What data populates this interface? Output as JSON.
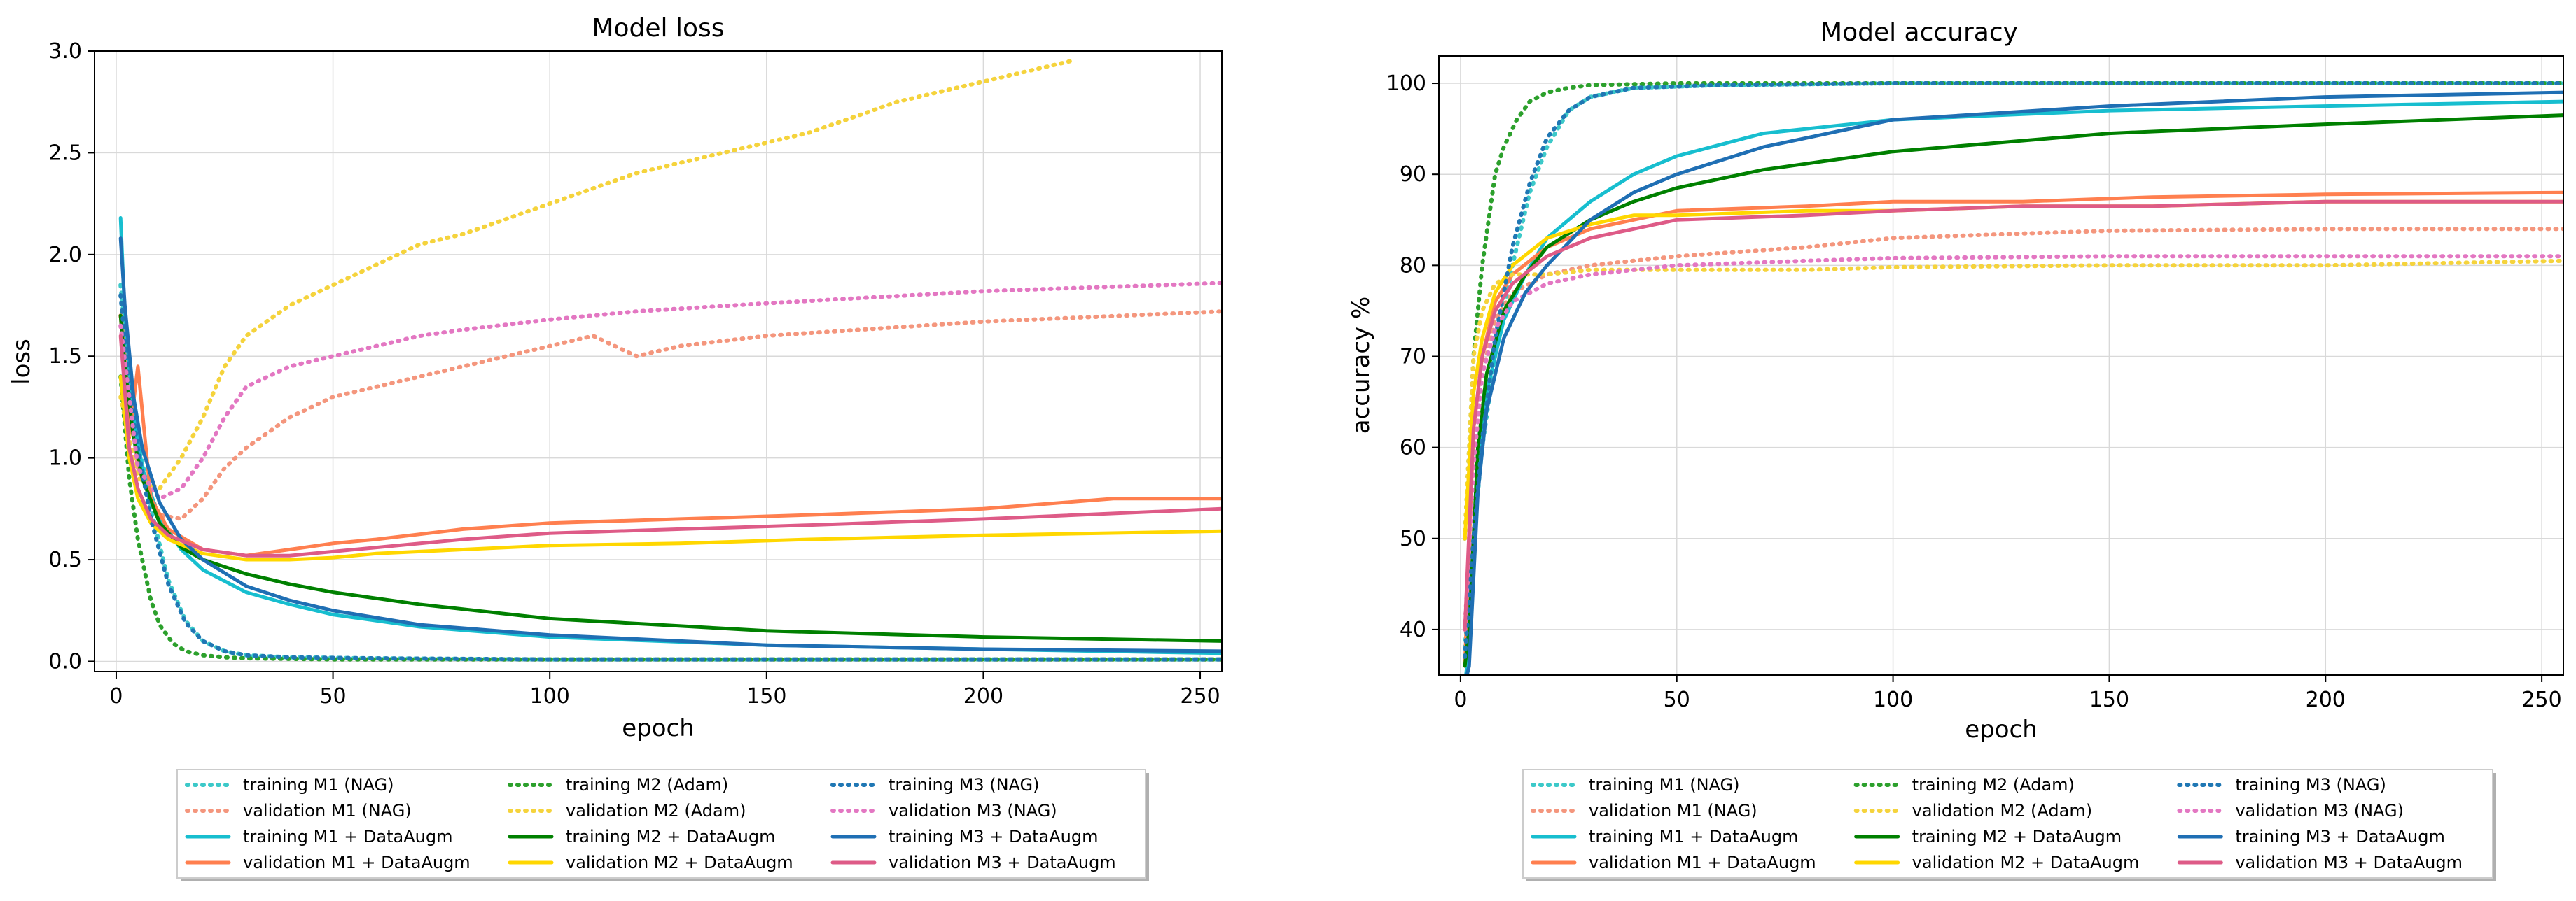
{
  "chart_data": [
    {
      "type": "line",
      "title": "Model loss",
      "xlabel": "epoch",
      "ylabel": "loss",
      "xlim": [
        -5,
        255
      ],
      "ylim": [
        -0.05,
        3.0
      ],
      "xticks": [
        0,
        50,
        100,
        150,
        200,
        250
      ],
      "yticks": [
        0.0,
        0.5,
        1.0,
        1.5,
        2.0,
        2.5,
        3.0
      ],
      "ytick_labels": [
        "0.0",
        "0.5",
        "1.0",
        "1.5",
        "2.0",
        "2.5",
        "3.0"
      ],
      "grid": true,
      "legend_position": "below",
      "series": [
        {
          "name": "training M1 (NAG)",
          "color": "#3cc9c9",
          "style": "dotted",
          "x": [
            1,
            3,
            5,
            8,
            12,
            16,
            20,
            25,
            30,
            40,
            60,
            100,
            150,
            200,
            255
          ],
          "y": [
            1.85,
            1.4,
            1.1,
            0.75,
            0.4,
            0.2,
            0.1,
            0.05,
            0.03,
            0.02,
            0.015,
            0.01,
            0.01,
            0.01,
            0.01
          ]
        },
        {
          "name": "validation M1 (NAG)",
          "color": "#f4967d",
          "style": "dotted",
          "x": [
            1,
            5,
            10,
            15,
            20,
            25,
            30,
            40,
            50,
            60,
            70,
            80,
            100,
            110,
            120,
            130,
            150,
            200,
            255
          ],
          "y": [
            1.7,
            0.95,
            0.72,
            0.7,
            0.8,
            0.95,
            1.05,
            1.2,
            1.3,
            1.35,
            1.4,
            1.45,
            1.55,
            1.6,
            1.5,
            1.55,
            1.6,
            1.67,
            1.72
          ]
        },
        {
          "name": "training M1 + DataAugm",
          "color": "#17becf",
          "style": "solid",
          "x": [
            1,
            2,
            4,
            6,
            10,
            15,
            20,
            30,
            40,
            50,
            70,
            100,
            150,
            200,
            255
          ],
          "y": [
            2.18,
            1.7,
            1.2,
            0.95,
            0.7,
            0.55,
            0.45,
            0.34,
            0.28,
            0.23,
            0.17,
            0.12,
            0.08,
            0.06,
            0.04
          ]
        },
        {
          "name": "validation M1 + DataAugm",
          "color": "#ff7f4f",
          "style": "solid",
          "x": [
            1,
            3,
            5,
            8,
            12,
            20,
            30,
            40,
            50,
            60,
            80,
            100,
            130,
            160,
            200,
            230,
            255
          ],
          "y": [
            1.7,
            1.1,
            1.45,
            0.8,
            0.65,
            0.55,
            0.52,
            0.55,
            0.58,
            0.6,
            0.65,
            0.68,
            0.7,
            0.72,
            0.75,
            0.8,
            0.8
          ]
        },
        {
          "name": "training M2 (Adam)",
          "color": "#2ca02c",
          "style": "dotted",
          "x": [
            1,
            3,
            5,
            8,
            10,
            13,
            16,
            20,
            25,
            30,
            50,
            100,
            150,
            200,
            255
          ],
          "y": [
            1.4,
            0.9,
            0.6,
            0.3,
            0.18,
            0.09,
            0.05,
            0.03,
            0.02,
            0.015,
            0.01,
            0.01,
            0.01,
            0.01,
            0.01
          ]
        },
        {
          "name": "validation M2 (Adam)",
          "color": "#f5d33c",
          "style": "dotted",
          "x": [
            1,
            5,
            10,
            15,
            20,
            25,
            30,
            40,
            50,
            60,
            70,
            80,
            100,
            120,
            140,
            160,
            180,
            200,
            220
          ],
          "y": [
            1.3,
            0.9,
            0.85,
            1.0,
            1.2,
            1.45,
            1.6,
            1.75,
            1.85,
            1.95,
            2.05,
            2.1,
            2.25,
            2.4,
            2.5,
            2.6,
            2.75,
            2.85,
            2.95
          ]
        },
        {
          "name": "training M2 + DataAugm",
          "color": "#008000",
          "style": "solid",
          "x": [
            1,
            2,
            4,
            6,
            10,
            15,
            20,
            30,
            40,
            50,
            70,
            100,
            150,
            200,
            255
          ],
          "y": [
            1.7,
            1.45,
            1.1,
            0.9,
            0.68,
            0.56,
            0.5,
            0.43,
            0.38,
            0.34,
            0.28,
            0.21,
            0.15,
            0.12,
            0.1
          ]
        },
        {
          "name": "validation M2 + DataAugm",
          "color": "#ffd700",
          "style": "solid",
          "x": [
            1,
            3,
            5,
            8,
            12,
            20,
            30,
            40,
            50,
            60,
            80,
            100,
            130,
            160,
            200,
            255
          ],
          "y": [
            1.4,
            1.0,
            0.8,
            0.68,
            0.6,
            0.53,
            0.5,
            0.5,
            0.51,
            0.53,
            0.55,
            0.57,
            0.58,
            0.6,
            0.62,
            0.64
          ]
        },
        {
          "name": "training M3 (NAG)",
          "color": "#1f77b4",
          "style": "dotted",
          "x": [
            1,
            3,
            5,
            8,
            12,
            16,
            20,
            25,
            30,
            40,
            60,
            100,
            150,
            200,
            255
          ],
          "y": [
            1.8,
            1.35,
            1.05,
            0.7,
            0.38,
            0.19,
            0.1,
            0.05,
            0.03,
            0.02,
            0.015,
            0.01,
            0.01,
            0.01,
            0.01
          ]
        },
        {
          "name": "validation M3 (NAG)",
          "color": "#e377c2",
          "style": "dotted",
          "x": [
            1,
            5,
            10,
            15,
            20,
            25,
            30,
            40,
            50,
            60,
            70,
            80,
            100,
            120,
            150,
            200,
            255
          ],
          "y": [
            1.65,
            0.95,
            0.8,
            0.85,
            1.0,
            1.2,
            1.35,
            1.45,
            1.5,
            1.55,
            1.6,
            1.63,
            1.68,
            1.72,
            1.76,
            1.82,
            1.86
          ]
        },
        {
          "name": "training M3 + DataAugm",
          "color": "#1f6fb4",
          "style": "solid",
          "x": [
            1,
            2,
            4,
            6,
            10,
            15,
            20,
            30,
            40,
            50,
            70,
            100,
            150,
            200,
            255
          ],
          "y": [
            2.08,
            1.75,
            1.3,
            1.05,
            0.78,
            0.6,
            0.5,
            0.37,
            0.3,
            0.25,
            0.18,
            0.13,
            0.08,
            0.06,
            0.05
          ]
        },
        {
          "name": "validation M3 + DataAugm",
          "color": "#de5b87",
          "style": "solid",
          "x": [
            1,
            3,
            5,
            8,
            12,
            20,
            30,
            40,
            50,
            60,
            80,
            100,
            130,
            160,
            200,
            255
          ],
          "y": [
            1.6,
            1.05,
            0.85,
            0.7,
            0.62,
            0.55,
            0.52,
            0.52,
            0.54,
            0.56,
            0.6,
            0.63,
            0.65,
            0.67,
            0.7,
            0.75
          ]
        }
      ]
    },
    {
      "type": "line",
      "title": "Model accuracy",
      "xlabel": "epoch",
      "ylabel": "accuracy %",
      "xlim": [
        -5,
        255
      ],
      "ylim": [
        35,
        103
      ],
      "xticks": [
        0,
        50,
        100,
        150,
        200,
        250
      ],
      "yticks": [
        40,
        50,
        60,
        70,
        80,
        90,
        100
      ],
      "ytick_labels": [
        "40",
        "50",
        "60",
        "70",
        "80",
        "90",
        "100"
      ],
      "grid": true,
      "legend_position": "below",
      "series": [
        {
          "name": "training M1 (NAG)",
          "color": "#3cc9c9",
          "style": "dotted",
          "x": [
            1,
            3,
            5,
            8,
            12,
            16,
            20,
            25,
            30,
            40,
            60,
            100,
            150,
            200,
            255
          ],
          "y": [
            38,
            50,
            60,
            70,
            80,
            88,
            93,
            97,
            98.5,
            99.5,
            99.8,
            100,
            100,
            100,
            100
          ]
        },
        {
          "name": "validation M1 (NAG)",
          "color": "#f4967d",
          "style": "dotted",
          "x": [
            1,
            3,
            5,
            8,
            12,
            20,
            30,
            50,
            80,
            100,
            130,
            150,
            200,
            255
          ],
          "y": [
            40,
            58,
            68,
            74,
            77,
            79,
            80,
            81,
            82,
            83,
            83.5,
            83.8,
            84,
            84
          ]
        },
        {
          "name": "training M1 + DataAugm",
          "color": "#17becf",
          "style": "solid",
          "x": [
            1,
            2,
            4,
            6,
            10,
            15,
            20,
            30,
            40,
            50,
            70,
            100,
            150,
            200,
            255
          ],
          "y": [
            34,
            38,
            58,
            66,
            74,
            79,
            83,
            87,
            90,
            92,
            94.5,
            96,
            97,
            97.5,
            98
          ]
        },
        {
          "name": "validation M1 + DataAugm",
          "color": "#ff7f4f",
          "style": "solid",
          "x": [
            1,
            3,
            5,
            8,
            12,
            20,
            30,
            40,
            50,
            80,
            100,
            130,
            160,
            200,
            255
          ],
          "y": [
            36,
            62,
            70,
            76,
            79,
            82,
            84,
            85,
            86,
            86.5,
            87,
            87,
            87.5,
            87.8,
            88
          ]
        },
        {
          "name": "training M2 (Adam)",
          "color": "#2ca02c",
          "style": "dotted",
          "x": [
            1,
            3,
            5,
            8,
            10,
            13,
            16,
            20,
            25,
            30,
            50,
            100,
            150,
            200,
            255
          ],
          "y": [
            50,
            70,
            80,
            90,
            93,
            96,
            98,
            99,
            99.5,
            99.8,
            100,
            100,
            100,
            100,
            100
          ]
        },
        {
          "name": "validation M2 (Adam)",
          "color": "#f5d33c",
          "style": "dotted",
          "x": [
            1,
            3,
            5,
            8,
            12,
            20,
            30,
            50,
            80,
            100,
            150,
            200,
            255
          ],
          "y": [
            50,
            70,
            75,
            78,
            79,
            79,
            79.5,
            79.5,
            79.5,
            79.8,
            80,
            80,
            80.5
          ]
        },
        {
          "name": "training M2 + DataAugm",
          "color": "#008000",
          "style": "solid",
          "x": [
            1,
            2,
            4,
            6,
            10,
            15,
            20,
            30,
            40,
            50,
            70,
            100,
            150,
            200,
            255
          ],
          "y": [
            36,
            40,
            60,
            68,
            75,
            79,
            82,
            85,
            87,
            88.5,
            90.5,
            92.5,
            94.5,
            95.5,
            96.5
          ]
        },
        {
          "name": "validation M2 + DataAugm",
          "color": "#ffd700",
          "style": "solid",
          "x": [
            1,
            3,
            5,
            8,
            12,
            20,
            30,
            40,
            50,
            80,
            100,
            130,
            160,
            200,
            255
          ],
          "y": [
            50,
            66,
            72,
            77,
            80,
            83,
            84.5,
            85.5,
            85.5,
            86,
            86,
            86.5,
            86.5,
            87,
            87
          ]
        },
        {
          "name": "training M3 (NAG)",
          "color": "#1f77b4",
          "style": "dotted",
          "x": [
            1,
            3,
            5,
            8,
            12,
            16,
            20,
            25,
            30,
            40,
            60,
            100,
            150,
            200,
            255
          ],
          "y": [
            37,
            50,
            61,
            72,
            82,
            89,
            94,
            97,
            98.5,
            99.5,
            99.8,
            100,
            100,
            100,
            100
          ]
        },
        {
          "name": "validation M3 (NAG)",
          "color": "#e377c2",
          "style": "dotted",
          "x": [
            1,
            3,
            5,
            8,
            12,
            20,
            30,
            50,
            80,
            100,
            150,
            200,
            255
          ],
          "y": [
            40,
            58,
            68,
            73,
            76,
            78,
            79,
            80,
            80.5,
            80.8,
            81,
            81,
            81
          ]
        },
        {
          "name": "training M3 + DataAugm",
          "color": "#1f6fb4",
          "style": "solid",
          "x": [
            1,
            2,
            4,
            6,
            10,
            15,
            20,
            30,
            40,
            50,
            70,
            100,
            150,
            200,
            255
          ],
          "y": [
            34,
            36,
            55,
            64,
            72,
            77,
            80,
            85,
            88,
            90,
            93,
            96,
            97.5,
            98.5,
            99
          ]
        },
        {
          "name": "validation M3 + DataAugm",
          "color": "#de5b87",
          "style": "solid",
          "x": [
            1,
            3,
            5,
            8,
            12,
            20,
            30,
            40,
            50,
            80,
            100,
            130,
            160,
            200,
            255
          ],
          "y": [
            40,
            62,
            70,
            75,
            78,
            81,
            83,
            84,
            85,
            85.5,
            86,
            86.5,
            86.5,
            87,
            87
          ]
        }
      ]
    }
  ]
}
